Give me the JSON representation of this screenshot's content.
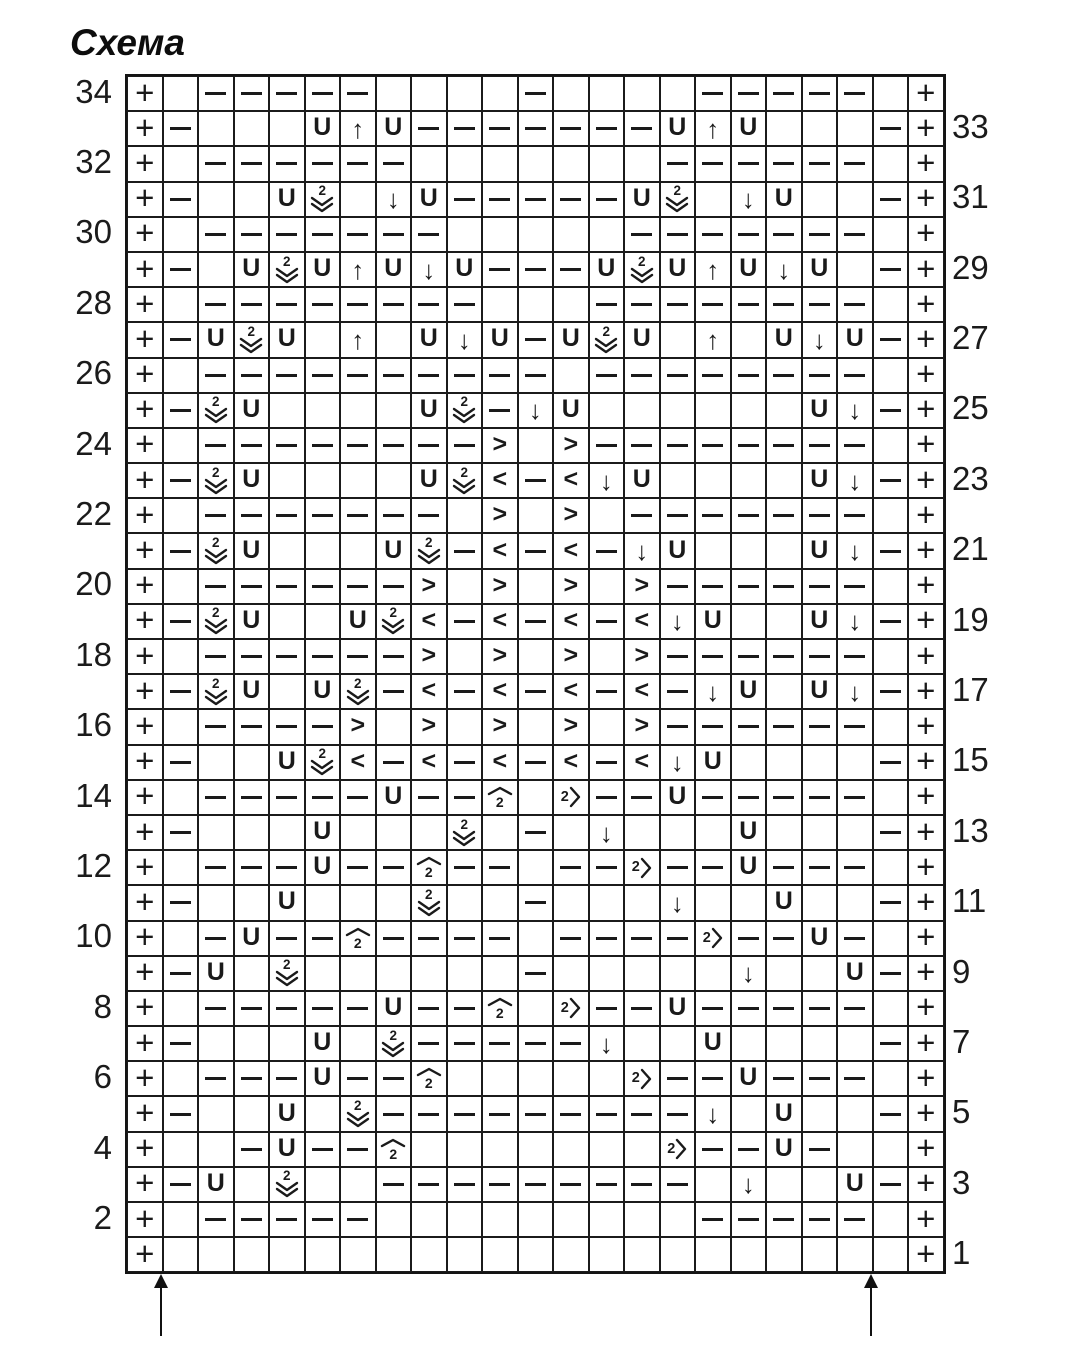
{
  "title": "Схема",
  "colors": {
    "ink": "#1a1a1a",
    "grid_line": "#1b1b1b",
    "background": "#ffffff"
  },
  "symbols_legend": {
    "p": "plus-edge-stitch",
    "d": "purl-dash",
    "U": "yarn-over",
    "au": "arrow-up",
    "ad": "arrow-down",
    "v2": "two-over-double-chevron-down",
    "h2": "chevron-hat-over-two",
    "2r": "two-with-chevron-right",
    "gt": "chevron-right",
    "lt": "chevron-left",
    ".": "empty"
  },
  "grid": {
    "columns": 23,
    "rows": [
      {
        "num": 34,
        "side": "left",
        "cells": [
          "p",
          ".",
          "d",
          "d",
          "d",
          "d",
          "d",
          ".",
          ".",
          ".",
          ".",
          "d",
          ".",
          ".",
          ".",
          ".",
          "d",
          "d",
          "d",
          "d",
          "d",
          ".",
          "p"
        ]
      },
      {
        "num": 33,
        "side": "right",
        "cells": [
          "p",
          "d",
          ".",
          ".",
          ".",
          "U",
          "au",
          "U",
          "d",
          "d",
          "d",
          "d",
          "d",
          "d",
          "d",
          "U",
          "au",
          "U",
          ".",
          ".",
          ".",
          "d",
          "p"
        ]
      },
      {
        "num": 32,
        "side": "left",
        "cells": [
          "p",
          ".",
          "d",
          "d",
          "d",
          "d",
          "d",
          "d",
          ".",
          ".",
          ".",
          ".",
          ".",
          ".",
          ".",
          "d",
          "d",
          "d",
          "d",
          "d",
          "d",
          ".",
          "p"
        ]
      },
      {
        "num": 31,
        "side": "right",
        "cells": [
          "p",
          "d",
          ".",
          ".",
          "U",
          "v2",
          ".",
          "ad",
          "U",
          "d",
          "d",
          "d",
          "d",
          "d",
          "U",
          "v2",
          ".",
          "ad",
          "U",
          ".",
          ".",
          "d",
          "p"
        ]
      },
      {
        "num": 30,
        "side": "left",
        "cells": [
          "p",
          ".",
          "d",
          "d",
          "d",
          "d",
          "d",
          "d",
          "d",
          ".",
          ".",
          ".",
          ".",
          ".",
          "d",
          "d",
          "d",
          "d",
          "d",
          "d",
          "d",
          ".",
          "p"
        ]
      },
      {
        "num": 29,
        "side": "right",
        "cells": [
          "p",
          "d",
          ".",
          "U",
          "v2",
          "U",
          "au",
          "U",
          "ad",
          "U",
          "d",
          "d",
          "d",
          "U",
          "v2",
          "U",
          "au",
          "U",
          "ad",
          "U",
          ".",
          "d",
          "p"
        ]
      },
      {
        "num": 28,
        "side": "left",
        "cells": [
          "p",
          ".",
          "d",
          "d",
          "d",
          "d",
          "d",
          "d",
          "d",
          "d",
          ".",
          ".",
          ".",
          "d",
          "d",
          "d",
          "d",
          "d",
          "d",
          "d",
          "d",
          ".",
          "p"
        ]
      },
      {
        "num": 27,
        "side": "right",
        "cells": [
          "p",
          "d",
          "U",
          "v2",
          "U",
          ".",
          "au",
          ".",
          "U",
          "ad",
          "U",
          "d",
          "U",
          "v2",
          "U",
          ".",
          "au",
          ".",
          "U",
          "ad",
          "U",
          "d",
          "p"
        ]
      },
      {
        "num": 26,
        "side": "left",
        "cells": [
          "p",
          ".",
          "d",
          "d",
          "d",
          "d",
          "d",
          "d",
          "d",
          "d",
          "d",
          "d",
          ".",
          "d",
          "d",
          "d",
          "d",
          "d",
          "d",
          "d",
          "d",
          ".",
          "p"
        ]
      },
      {
        "num": 25,
        "side": "right",
        "cells": [
          "p",
          "d",
          "v2",
          "U",
          ".",
          ".",
          ".",
          ".",
          "U",
          "v2",
          "d",
          "ad",
          "U",
          ".",
          ".",
          ".",
          ".",
          ".",
          ".",
          "U",
          "ad",
          "d",
          "p"
        ]
      },
      {
        "num": 24,
        "side": "left",
        "cells": [
          "p",
          ".",
          "d",
          "d",
          "d",
          "d",
          "d",
          "d",
          "d",
          "d",
          "gt",
          ".",
          "gt",
          "d",
          "d",
          "d",
          "d",
          "d",
          "d",
          "d",
          "d",
          ".",
          "p"
        ]
      },
      {
        "num": 23,
        "side": "right",
        "cells": [
          "p",
          "d",
          "v2",
          "U",
          ".",
          ".",
          ".",
          ".",
          "U",
          "v2",
          "lt",
          "d",
          "lt",
          "ad",
          "U",
          ".",
          ".",
          ".",
          ".",
          "U",
          "ad",
          "d",
          "p"
        ]
      },
      {
        "num": 22,
        "side": "left",
        "cells": [
          "p",
          ".",
          "d",
          "d",
          "d",
          "d",
          "d",
          "d",
          "d",
          ".",
          "gt",
          ".",
          "gt",
          ".",
          "d",
          "d",
          "d",
          "d",
          "d",
          "d",
          "d",
          ".",
          "p"
        ]
      },
      {
        "num": 21,
        "side": "right",
        "cells": [
          "p",
          "d",
          "v2",
          "U",
          ".",
          ".",
          ".",
          "U",
          "v2",
          "d",
          "lt",
          "d",
          "lt",
          "d",
          "ad",
          "U",
          ".",
          ".",
          ".",
          "U",
          "ad",
          "d",
          "p"
        ]
      },
      {
        "num": 20,
        "side": "left",
        "cells": [
          "p",
          ".",
          "d",
          "d",
          "d",
          "d",
          "d",
          "d",
          "gt",
          ".",
          "gt",
          ".",
          "gt",
          ".",
          "gt",
          "d",
          "d",
          "d",
          "d",
          "d",
          "d",
          ".",
          "p"
        ]
      },
      {
        "num": 19,
        "side": "right",
        "cells": [
          "p",
          "d",
          "v2",
          "U",
          ".",
          ".",
          "U",
          "v2",
          "lt",
          "d",
          "lt",
          "d",
          "lt",
          "d",
          "lt",
          "ad",
          "U",
          ".",
          ".",
          "U",
          "ad",
          "d",
          "p"
        ]
      },
      {
        "num": 18,
        "side": "left",
        "cells": [
          "p",
          ".",
          "d",
          "d",
          "d",
          "d",
          "d",
          "d",
          "gt",
          ".",
          "gt",
          ".",
          "gt",
          ".",
          "gt",
          "d",
          "d",
          "d",
          "d",
          "d",
          "d",
          ".",
          "p"
        ]
      },
      {
        "num": 17,
        "side": "right",
        "cells": [
          "p",
          "d",
          "v2",
          "U",
          ".",
          "U",
          "v2",
          "d",
          "lt",
          "d",
          "lt",
          "d",
          "lt",
          "d",
          "lt",
          "d",
          "ad",
          "U",
          ".",
          "U",
          "ad",
          "d",
          "p"
        ]
      },
      {
        "num": 16,
        "side": "left",
        "cells": [
          "p",
          ".",
          "d",
          "d",
          "d",
          "d",
          "gt",
          ".",
          "gt",
          ".",
          "gt",
          ".",
          "gt",
          ".",
          "gt",
          "d",
          "d",
          "d",
          "d",
          "d",
          "d",
          ".",
          "p"
        ]
      },
      {
        "num": 15,
        "side": "right",
        "cells": [
          "p",
          "d",
          ".",
          ".",
          "U",
          "v2",
          "lt",
          "d",
          "lt",
          "d",
          "lt",
          "d",
          "lt",
          "d",
          "lt",
          "ad",
          "U",
          ".",
          ".",
          ".",
          ".",
          "d",
          "p"
        ]
      },
      {
        "num": 14,
        "side": "left",
        "cells": [
          "p",
          ".",
          "d",
          "d",
          "d",
          "d",
          "d",
          "U",
          "d",
          "d",
          "h2",
          ".",
          "2r",
          "d",
          "d",
          "U",
          "d",
          "d",
          "d",
          "d",
          "d",
          ".",
          "p"
        ]
      },
      {
        "num": 13,
        "side": "right",
        "cells": [
          "p",
          "d",
          ".",
          ".",
          ".",
          "U",
          ".",
          ".",
          ".",
          "v2",
          ".",
          "d",
          ".",
          "ad",
          ".",
          ".",
          ".",
          "U",
          ".",
          ".",
          ".",
          "d",
          "p"
        ]
      },
      {
        "num": 12,
        "side": "left",
        "cells": [
          "p",
          ".",
          "d",
          "d",
          "d",
          "U",
          "d",
          "d",
          "h2",
          "d",
          "d",
          ".",
          "d",
          "d",
          "2r",
          "d",
          "d",
          "U",
          "d",
          "d",
          "d",
          ".",
          "p"
        ]
      },
      {
        "num": 11,
        "side": "right",
        "cells": [
          "p",
          "d",
          ".",
          ".",
          "U",
          ".",
          ".",
          ".",
          "v2",
          ".",
          ".",
          "d",
          ".",
          ".",
          ".",
          "ad",
          ".",
          ".",
          "U",
          ".",
          ".",
          "d",
          "p"
        ]
      },
      {
        "num": 10,
        "side": "left",
        "cells": [
          "p",
          ".",
          "d",
          "U",
          "d",
          "d",
          "h2",
          "d",
          "d",
          "d",
          "d",
          ".",
          "d",
          "d",
          "d",
          "d",
          "2r",
          "d",
          "d",
          "U",
          "d",
          ".",
          "p"
        ]
      },
      {
        "num": 9,
        "side": "right",
        "cells": [
          "p",
          "d",
          "U",
          ".",
          "v2",
          ".",
          ".",
          ".",
          ".",
          ".",
          ".",
          "d",
          ".",
          ".",
          ".",
          ".",
          ".",
          "ad",
          ".",
          ".",
          "U",
          "d",
          "p"
        ]
      },
      {
        "num": 8,
        "side": "left",
        "cells": [
          "p",
          ".",
          "d",
          "d",
          "d",
          "d",
          "d",
          "U",
          "d",
          "d",
          "h2",
          ".",
          "2r",
          "d",
          "d",
          "U",
          "d",
          "d",
          "d",
          "d",
          "d",
          ".",
          "p"
        ]
      },
      {
        "num": 7,
        "side": "right",
        "cells": [
          "p",
          "d",
          ".",
          ".",
          ".",
          "U",
          ".",
          "v2",
          "d",
          "d",
          "d",
          "d",
          "d",
          "ad",
          ".",
          ".",
          "U",
          ".",
          ".",
          ".",
          ".",
          "d",
          "p"
        ]
      },
      {
        "num": 6,
        "side": "left",
        "cells": [
          "p",
          ".",
          "d",
          "d",
          "d",
          "U",
          "d",
          "d",
          "h2",
          ".",
          ".",
          ".",
          ".",
          ".",
          "2r",
          "d",
          "d",
          "U",
          "d",
          "d",
          "d",
          ".",
          "p"
        ]
      },
      {
        "num": 5,
        "side": "right",
        "cells": [
          "p",
          "d",
          ".",
          ".",
          "U",
          ".",
          "v2",
          "d",
          "d",
          "d",
          "d",
          "d",
          "d",
          "d",
          "d",
          "d",
          "ad",
          ".",
          "U",
          ".",
          ".",
          "d",
          "p"
        ]
      },
      {
        "num": 4,
        "side": "left",
        "cells": [
          "p",
          ".",
          ".",
          "d",
          "U",
          "d",
          "d",
          "h2",
          ".",
          ".",
          ".",
          ".",
          ".",
          ".",
          ".",
          "2r",
          "d",
          "d",
          "U",
          "d",
          ".",
          ".",
          "p"
        ]
      },
      {
        "num": 3,
        "side": "right",
        "cells": [
          "p",
          "d",
          "U",
          ".",
          "v2",
          ".",
          ".",
          "d",
          "d",
          "d",
          "d",
          "d",
          "d",
          "d",
          "d",
          "d",
          ".",
          "ad",
          ".",
          ".",
          "U",
          "d",
          "p"
        ]
      },
      {
        "num": 2,
        "side": "left",
        "cells": [
          "p",
          ".",
          "d",
          "d",
          "d",
          "d",
          "d",
          ".",
          ".",
          ".",
          ".",
          ".",
          ".",
          ".",
          ".",
          ".",
          "d",
          "d",
          "d",
          "d",
          "d",
          ".",
          "p"
        ]
      },
      {
        "num": 1,
        "side": "right",
        "cells": [
          "p",
          ".",
          ".",
          ".",
          ".",
          ".",
          ".",
          ".",
          ".",
          ".",
          ".",
          ".",
          ".",
          ".",
          ".",
          ".",
          ".",
          ".",
          ".",
          ".",
          ".",
          ".",
          "p"
        ]
      }
    ]
  },
  "repeat_arrows": {
    "count": 2,
    "direction": "up",
    "at_columns": [
      2,
      22
    ]
  },
  "layout_numbers": {
    "left_column_values": [
      34,
      32,
      30,
      28,
      26,
      24,
      22,
      20,
      18,
      16,
      14,
      12,
      10,
      8,
      6,
      4,
      2
    ],
    "right_column_values": [
      33,
      31,
      29,
      27,
      25,
      23,
      21,
      19,
      17,
      15,
      13,
      11,
      9,
      7,
      5,
      3,
      1
    ]
  }
}
